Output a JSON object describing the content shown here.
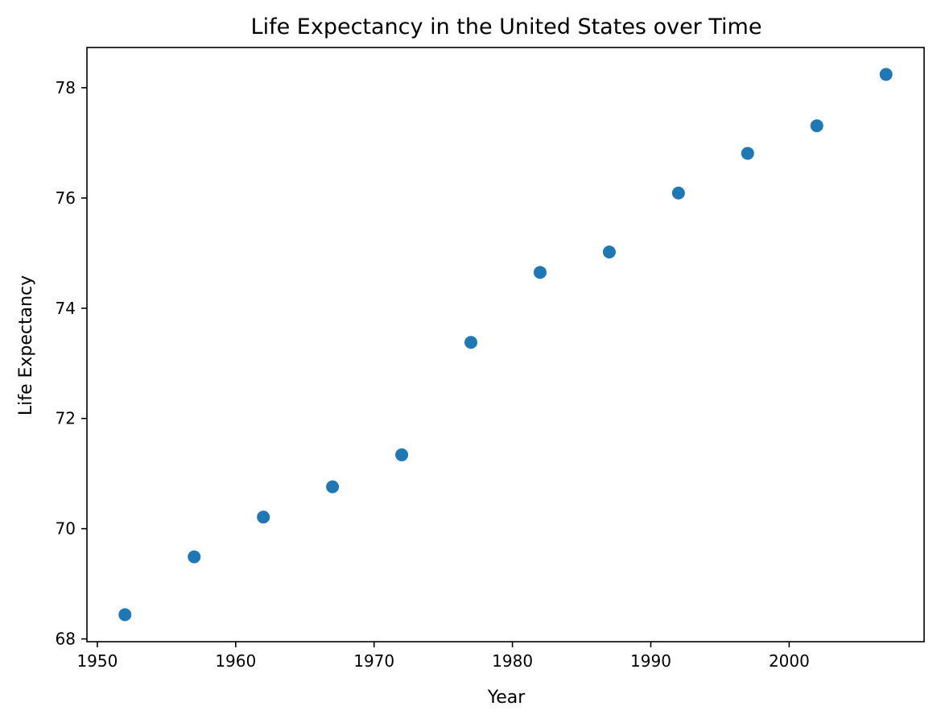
{
  "chart_data": {
    "type": "scatter",
    "title": "Life Expectancy in the United States over Time",
    "xlabel": "Year",
    "ylabel": "Life Expectancy",
    "xlim": [
      1949.25,
      2009.75
    ],
    "ylim": [
      67.95,
      78.73
    ],
    "xticks": [
      1950,
      1960,
      1970,
      1980,
      1990,
      2000
    ],
    "yticks": [
      68,
      70,
      72,
      74,
      76,
      78
    ],
    "grid": false,
    "marker_color": "#1f77b4",
    "series": [
      {
        "x": [
          1952,
          1957,
          1962,
          1967,
          1972,
          1977,
          1982,
          1987,
          1992,
          1997,
          2002,
          2007
        ],
        "y": [
          68.44,
          69.49,
          70.21,
          70.76,
          71.34,
          73.38,
          74.65,
          75.02,
          76.09,
          76.81,
          77.31,
          78.242
        ]
      }
    ]
  }
}
